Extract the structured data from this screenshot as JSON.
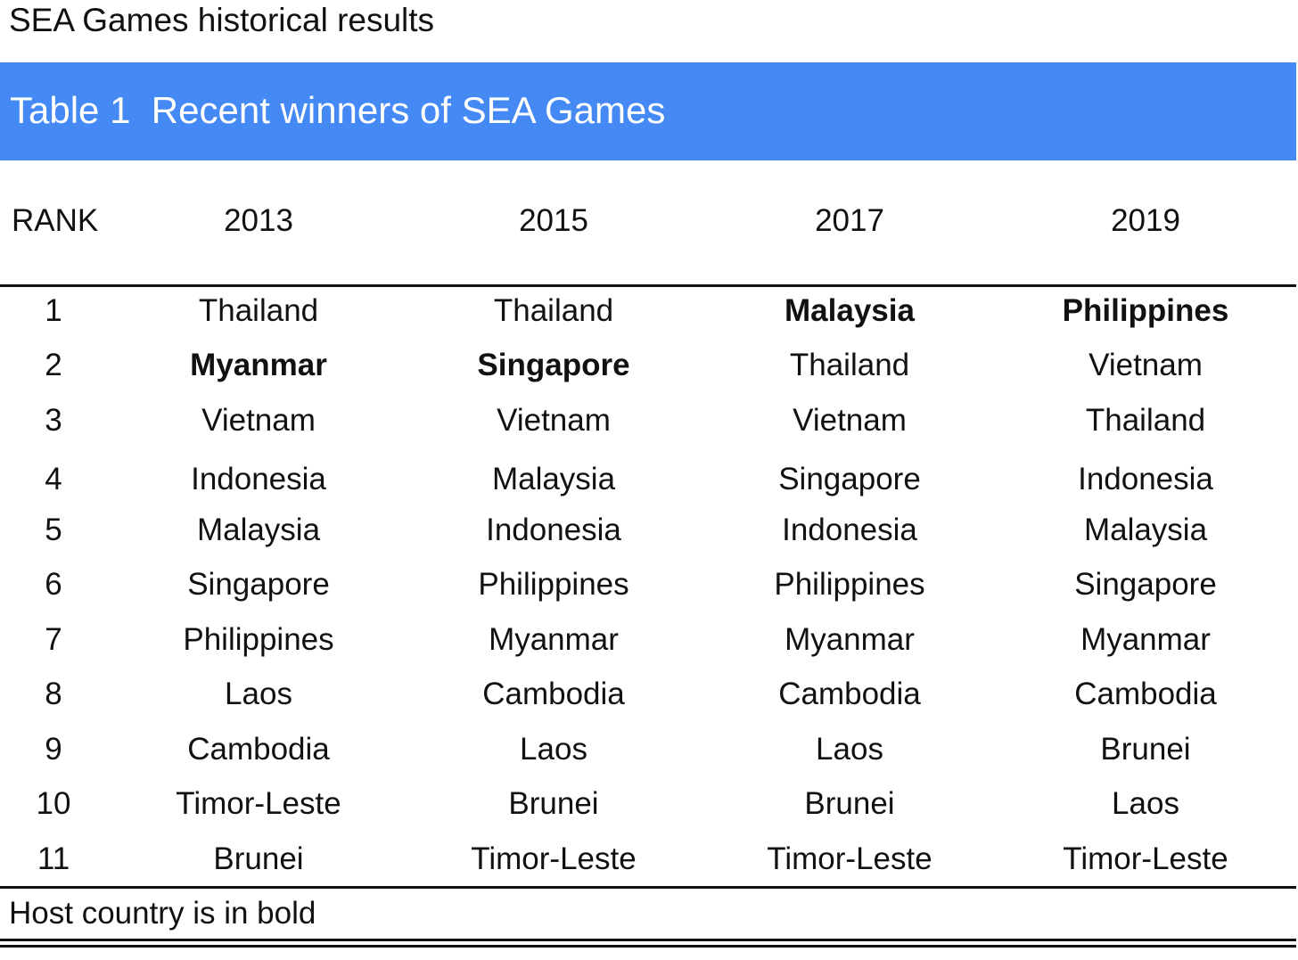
{
  "page_title": "SEA Games historical results",
  "banner": {
    "label": "Table 1",
    "title": "Recent winners of SEA Games",
    "color": "#4589f5"
  },
  "table": {
    "headers": [
      "RANK",
      "2013",
      "2015",
      "2017",
      "2019"
    ],
    "rows": [
      {
        "rank": "1",
        "cells": [
          {
            "text": "Thailand",
            "bold": false
          },
          {
            "text": "Thailand",
            "bold": false
          },
          {
            "text": "Malaysia",
            "bold": true
          },
          {
            "text": "Philippines",
            "bold": true
          }
        ]
      },
      {
        "rank": "2",
        "cells": [
          {
            "text": "Myanmar",
            "bold": true
          },
          {
            "text": "Singapore",
            "bold": true
          },
          {
            "text": "Thailand",
            "bold": false
          },
          {
            "text": "Vietnam",
            "bold": false
          }
        ]
      },
      {
        "rank": "3",
        "cells": [
          {
            "text": "Vietnam",
            "bold": false
          },
          {
            "text": "Vietnam",
            "bold": false
          },
          {
            "text": "Vietnam",
            "bold": false
          },
          {
            "text": "Thailand",
            "bold": false
          }
        ]
      },
      {
        "rank": "4",
        "cells": [
          {
            "text": "Indonesia",
            "bold": false
          },
          {
            "text": "Malaysia",
            "bold": false
          },
          {
            "text": "Singapore",
            "bold": false
          },
          {
            "text": "Indonesia",
            "bold": false
          }
        ]
      },
      {
        "rank": "5",
        "cells": [
          {
            "text": "Malaysia",
            "bold": false
          },
          {
            "text": "Indonesia",
            "bold": false
          },
          {
            "text": "Indonesia",
            "bold": false
          },
          {
            "text": "Malaysia",
            "bold": false
          }
        ]
      },
      {
        "rank": "6",
        "cells": [
          {
            "text": "Singapore",
            "bold": false
          },
          {
            "text": "Philippines",
            "bold": false
          },
          {
            "text": "Philippines",
            "bold": false
          },
          {
            "text": "Singapore",
            "bold": false
          }
        ]
      },
      {
        "rank": "7",
        "cells": [
          {
            "text": "Philippines",
            "bold": false
          },
          {
            "text": "Myanmar",
            "bold": false
          },
          {
            "text": "Myanmar",
            "bold": false
          },
          {
            "text": "Myanmar",
            "bold": false
          }
        ]
      },
      {
        "rank": "8",
        "cells": [
          {
            "text": "Laos",
            "bold": false
          },
          {
            "text": "Cambodia",
            "bold": false
          },
          {
            "text": "Cambodia",
            "bold": false
          },
          {
            "text": "Cambodia",
            "bold": false
          }
        ]
      },
      {
        "rank": "9",
        "cells": [
          {
            "text": "Cambodia",
            "bold": false
          },
          {
            "text": "Laos",
            "bold": false
          },
          {
            "text": "Laos",
            "bold": false
          },
          {
            "text": "Brunei",
            "bold": false
          }
        ]
      },
      {
        "rank": "10",
        "cells": [
          {
            "text": "Timor-Leste",
            "bold": false
          },
          {
            "text": "Brunei",
            "bold": false
          },
          {
            "text": "Brunei",
            "bold": false
          },
          {
            "text": "Laos",
            "bold": false
          }
        ]
      },
      {
        "rank": "11",
        "cells": [
          {
            "text": "Brunei",
            "bold": false
          },
          {
            "text": "Timor-Leste",
            "bold": false
          },
          {
            "text": "Timor-Leste",
            "bold": false
          },
          {
            "text": "Timor-Leste",
            "bold": false
          }
        ]
      }
    ]
  },
  "footnote": "Host country is in bold"
}
